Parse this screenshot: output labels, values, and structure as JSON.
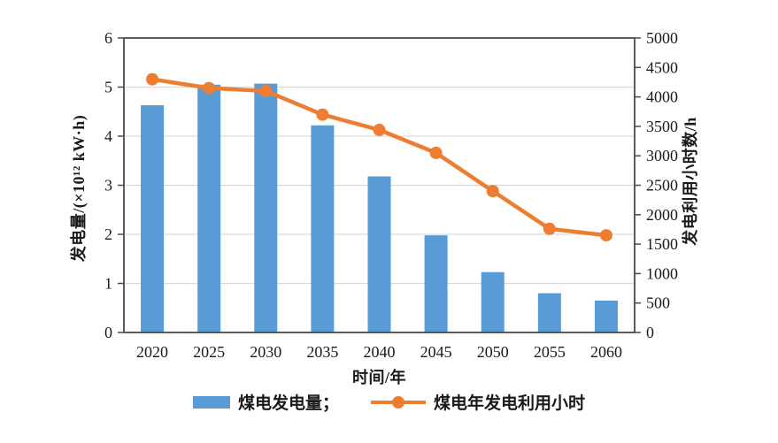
{
  "chart_data": {
    "type": "bar",
    "subtype": "combo-bar-line-dual-axis",
    "categories": [
      "2020",
      "2025",
      "2030",
      "2035",
      "2040",
      "2045",
      "2050",
      "2055",
      "2060"
    ],
    "series": [
      {
        "name": "煤电发电量",
        "kind": "bar",
        "axis": "left",
        "color": "#5B9BD5",
        "values": [
          4.63,
          5.05,
          5.07,
          4.22,
          3.18,
          1.98,
          1.23,
          0.8,
          0.65
        ]
      },
      {
        "name": "煤电年发电利用小时",
        "kind": "line",
        "axis": "right",
        "color": "#ED7D31",
        "values": [
          4300,
          4150,
          4100,
          3700,
          3440,
          3050,
          2400,
          1760,
          1650
        ]
      }
    ],
    "title": "",
    "xlabel": "时间/年",
    "ylabel_left": "发电量/(×10¹² kW·h)",
    "ylabel_right": "发电利用小时数/h",
    "ylim_left": [
      0,
      6
    ],
    "ytick_step_left": 1,
    "ylim_right": [
      0,
      5000
    ],
    "ytick_step_right": 500,
    "grid": "horizontal-light",
    "legend_position": "bottom-center",
    "legend": [
      {
        "label": "煤电发电量；",
        "marker": "bar-swatch",
        "color": "#5B9BD5"
      },
      {
        "label": "煤电年发电利用小时",
        "marker": "line-dot",
        "color": "#ED7D31"
      }
    ]
  },
  "style_colors": {
    "bar": "#5B9BD5",
    "line": "#ED7D31",
    "grid": "#D9D9D9",
    "axis": "#4a4a4a",
    "text": "#1a1a1a",
    "background": "#ffffff"
  }
}
